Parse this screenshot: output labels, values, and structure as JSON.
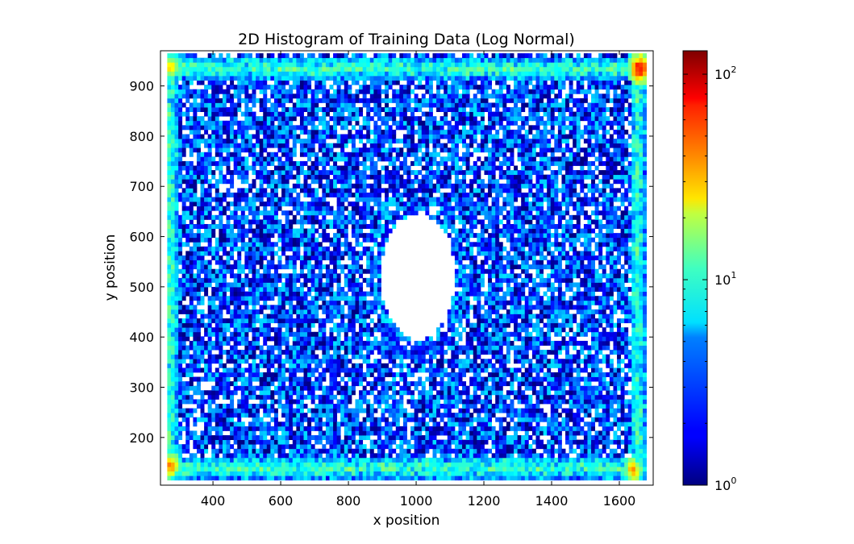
{
  "chart_data": {
    "type": "heatmap",
    "title": "2D Histogram of Training Data (Log Normal)",
    "xlabel": "x position",
    "ylabel": "y position",
    "xlim": [
      245,
      1700
    ],
    "ylim": [
      105,
      970
    ],
    "x_ticks": [
      400,
      600,
      800,
      1000,
      1200,
      1400,
      1600
    ],
    "y_ticks": [
      200,
      300,
      400,
      500,
      600,
      700,
      800,
      900
    ],
    "x_tick_labels": [
      "400",
      "600",
      "800",
      "1000",
      "1200",
      "1400",
      "1600"
    ],
    "y_tick_labels": [
      "200",
      "300",
      "400",
      "500",
      "600",
      "700",
      "800",
      "900"
    ],
    "grid": false,
    "colormap": "jet",
    "color_scale": "log",
    "colorbar": {
      "location": "right",
      "range": [
        1,
        130
      ],
      "ticks": [
        1,
        10,
        100
      ],
      "tick_labels": [
        {
          "base": "10",
          "exp": "0"
        },
        {
          "base": "10",
          "exp": "1"
        },
        {
          "base": "10",
          "exp": "2"
        }
      ]
    },
    "data_extent": {
      "x": [
        265,
        1680
      ],
      "y": [
        115,
        965
      ]
    },
    "hotspots": [
      {
        "x": 275,
        "y": 940,
        "count": 45
      },
      {
        "x": 1660,
        "y": 935,
        "count": 130
      },
      {
        "x": 275,
        "y": 145,
        "count": 70
      },
      {
        "x": 1640,
        "y": 135,
        "count": 60
      }
    ],
    "empty_region": {
      "center_x": 1005,
      "center_y": 520,
      "radius_x": 110,
      "radius_y": 125
    },
    "border_band_count": 6,
    "interior_count_range": [
      1,
      5
    ]
  }
}
